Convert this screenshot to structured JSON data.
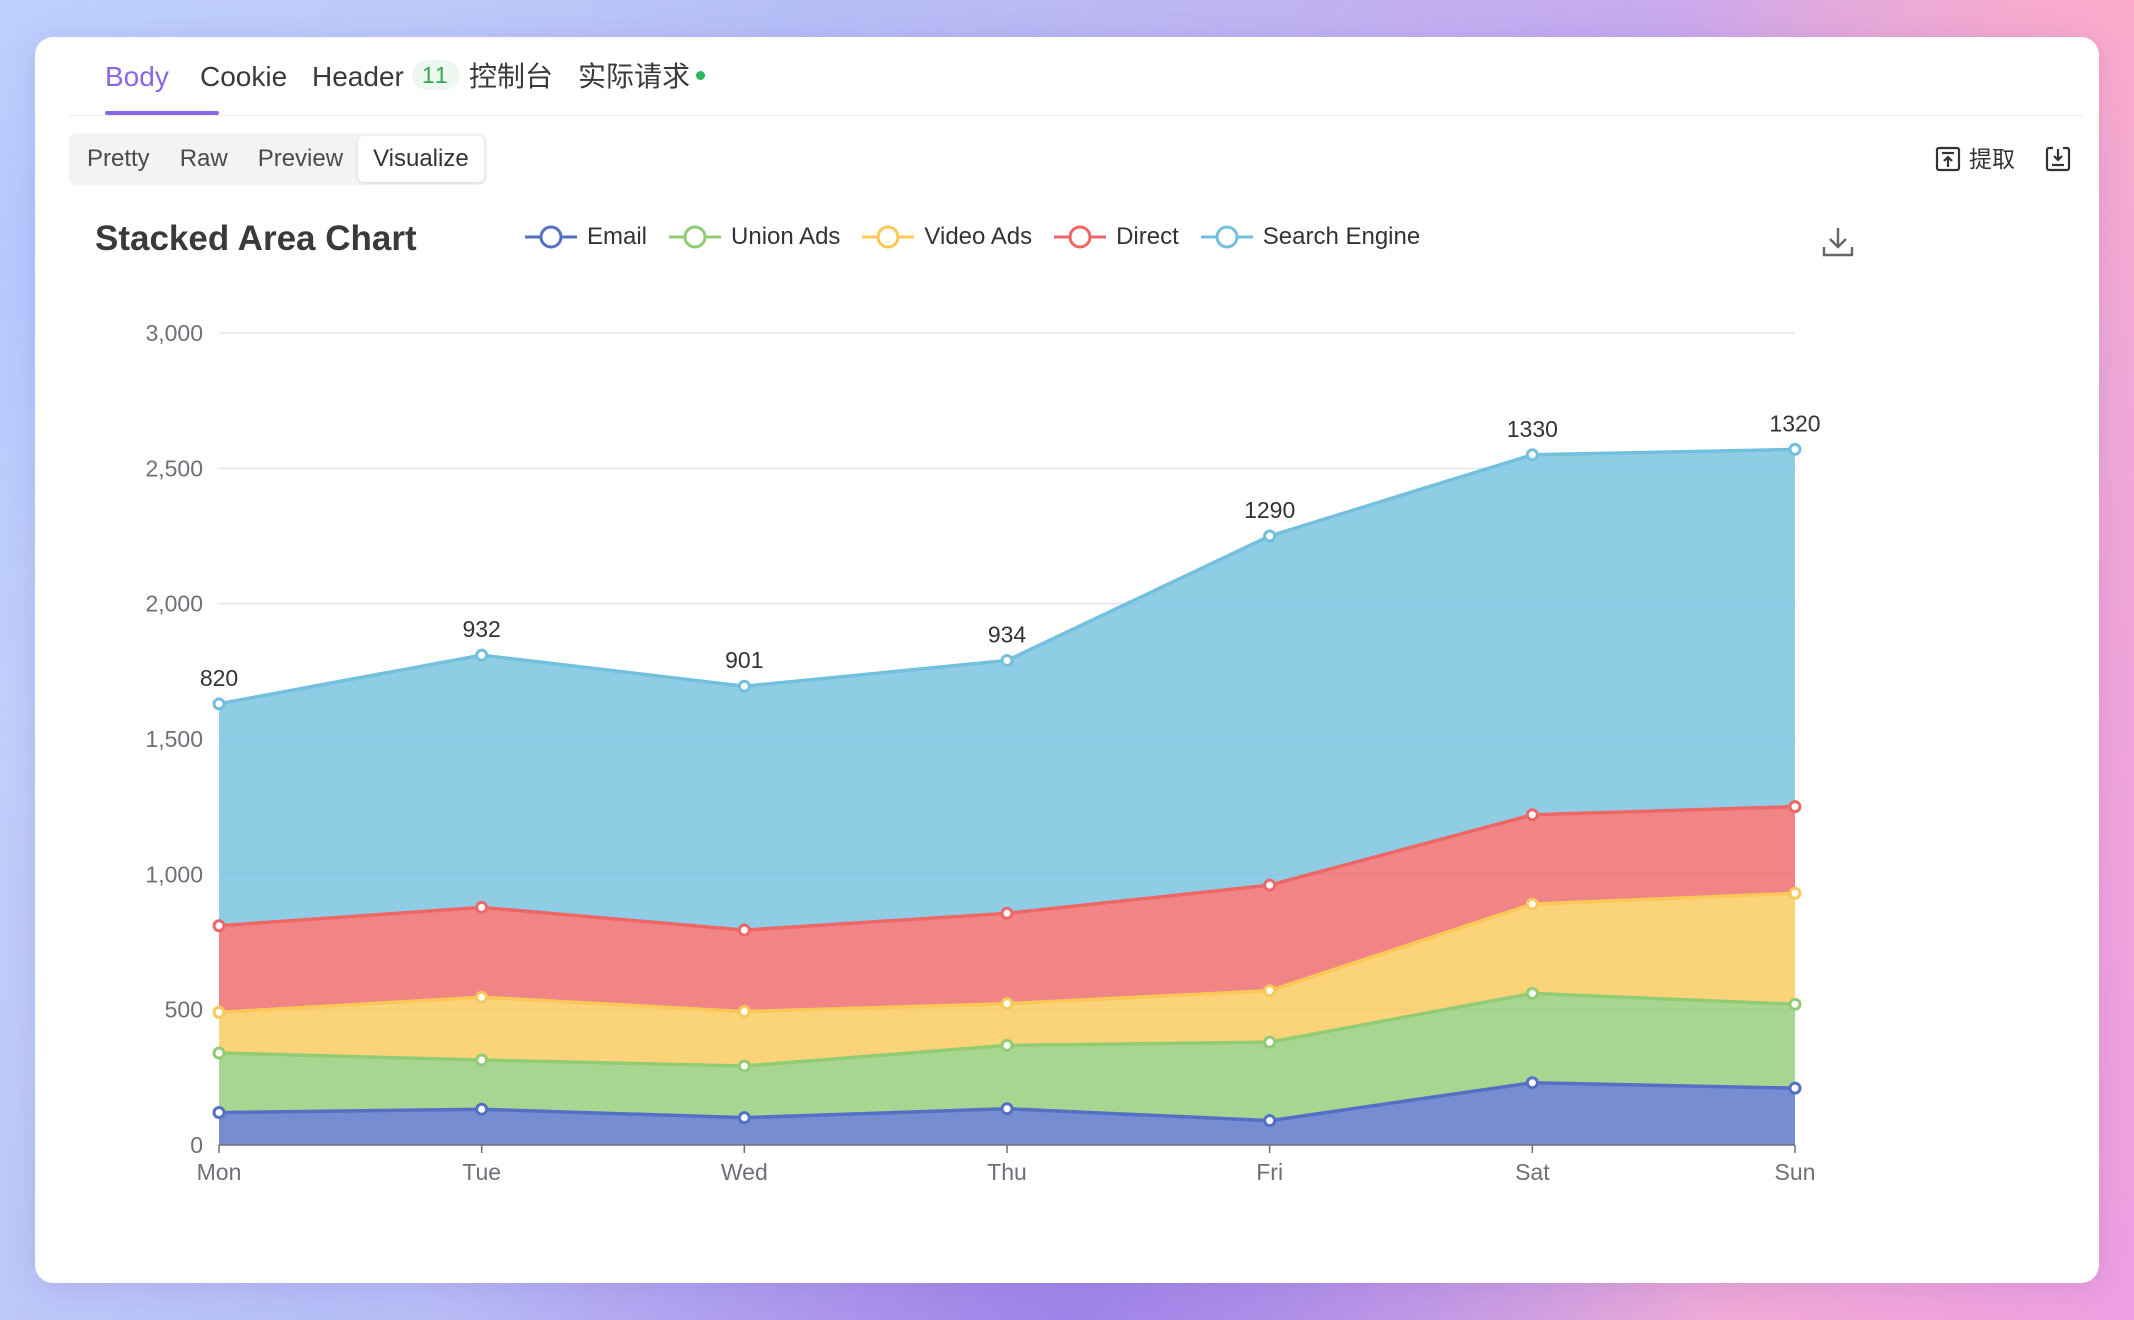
{
  "tabs": [
    {
      "label": "Body",
      "active": true
    },
    {
      "label": "Cookie"
    },
    {
      "label": "Header",
      "badge": "11"
    },
    {
      "label": "控制台"
    },
    {
      "label": "实际请求",
      "status_color": "#2fb55a"
    }
  ],
  "view_modes": [
    "Pretty",
    "Raw",
    "Preview",
    "Visualize"
  ],
  "active_view_mode": "Visualize",
  "toolbar": {
    "extract_label": "提取",
    "extract_icon": "extract-icon",
    "save_icon": "save-icon"
  },
  "chart_data": {
    "type": "area",
    "stacked": true,
    "title": "Stacked Area Chart",
    "categories": [
      "Mon",
      "Tue",
      "Wed",
      "Thu",
      "Fri",
      "Sat",
      "Sun"
    ],
    "ylim": [
      0,
      3000
    ],
    "yticks": [
      "0",
      "500",
      "1,000",
      "1,500",
      "2,000",
      "2,500",
      "3,000"
    ],
    "ytick_values": [
      0,
      500,
      1000,
      1500,
      2000,
      2500,
      3000
    ],
    "grid": true,
    "legend_position": "top",
    "series": [
      {
        "name": "Email",
        "color": "#5470c6",
        "values": [
          120,
          132,
          101,
          134,
          90,
          230,
          210
        ]
      },
      {
        "name": "Union Ads",
        "color": "#91cc75",
        "values": [
          220,
          182,
          191,
          234,
          290,
          330,
          310
        ]
      },
      {
        "name": "Video Ads",
        "color": "#fac858",
        "values": [
          150,
          232,
          201,
          154,
          190,
          330,
          410
        ]
      },
      {
        "name": "Direct",
        "color": "#ee6666",
        "values": [
          320,
          332,
          301,
          334,
          390,
          330,
          320
        ]
      },
      {
        "name": "Search Engine",
        "color": "#73c0de",
        "values": [
          820,
          932,
          901,
          934,
          1290,
          1330,
          1320
        ],
        "show_labels": true
      }
    ],
    "top_labels": [
      "820",
      "932",
      "901",
      "934",
      "1290",
      "1330",
      "1320"
    ]
  }
}
